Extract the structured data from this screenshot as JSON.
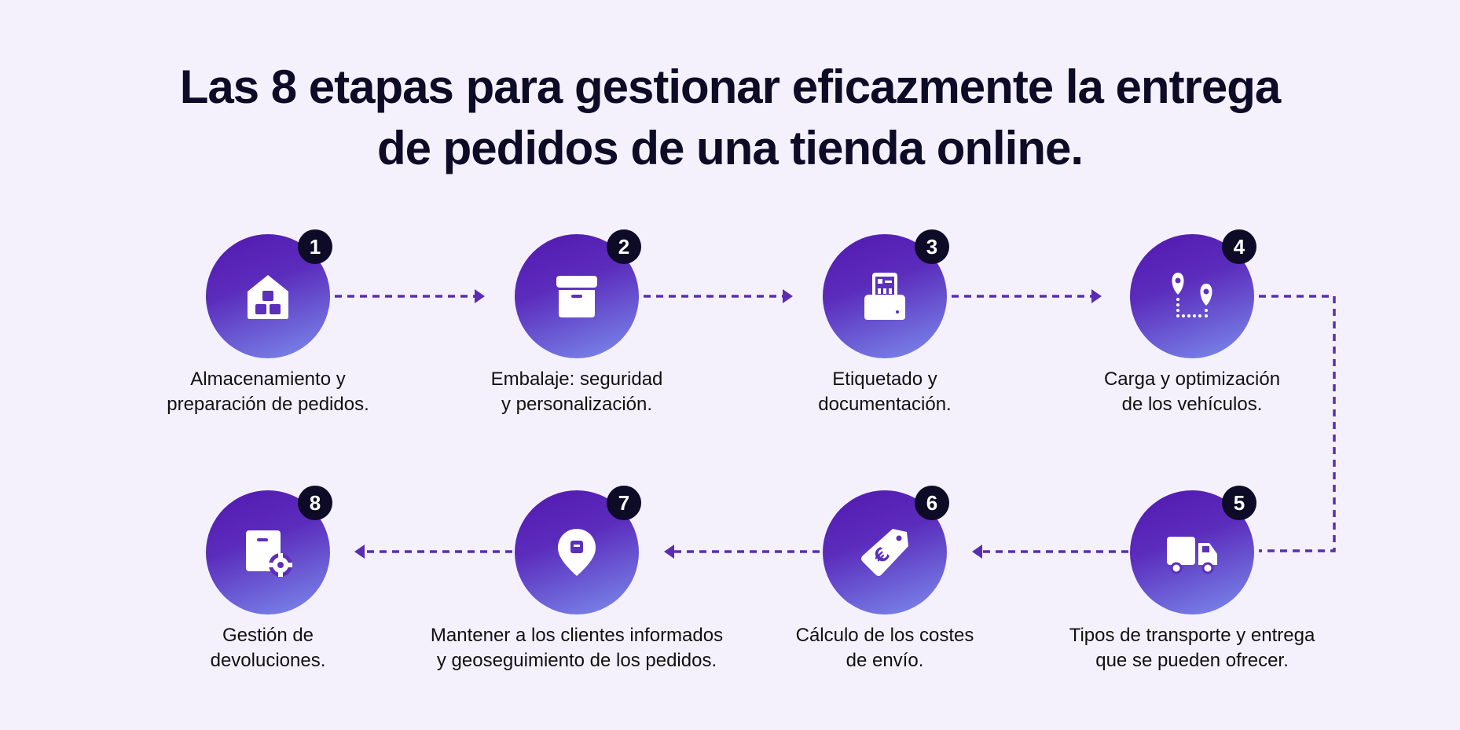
{
  "title": {
    "line1": "Las 8 etapas para gestionar eficazmente la entrega",
    "line2": "de pedidos de una tienda online."
  },
  "colors": {
    "background": "#f4f1fc",
    "circle_gradient_start": "#5318b0",
    "circle_gradient_end": "#7c8ded",
    "connector": "#5a2db0",
    "badge": "#0d0b26"
  },
  "steps": [
    {
      "number": "1",
      "icon": "warehouse-boxes-icon",
      "line1": "Almacenamiento y",
      "line2": "preparación de pedidos."
    },
    {
      "number": "2",
      "icon": "package-box-icon",
      "line1": "Embalaje: seguridad",
      "line2": "y personalización."
    },
    {
      "number": "3",
      "icon": "label-printer-icon",
      "line1": "Etiquetado y",
      "line2": "documentación."
    },
    {
      "number": "4",
      "icon": "route-pins-icon",
      "line1": "Carga y optimización",
      "line2": "de los vehículos."
    },
    {
      "number": "5",
      "icon": "delivery-truck-icon",
      "line1": "Tipos de transporte y entrega",
      "line2": "que se pueden ofrecer."
    },
    {
      "number": "6",
      "icon": "euro-price-tag-icon",
      "line1": "Cálculo de los costes",
      "line2": "de envío."
    },
    {
      "number": "7",
      "icon": "location-pin-icon",
      "line1": "Mantener a los clientes informados",
      "line2": "y geoseguimiento de los pedidos."
    },
    {
      "number": "8",
      "icon": "box-settings-icon",
      "line1": "Gestión de",
      "line2": "devoluciones."
    }
  ]
}
